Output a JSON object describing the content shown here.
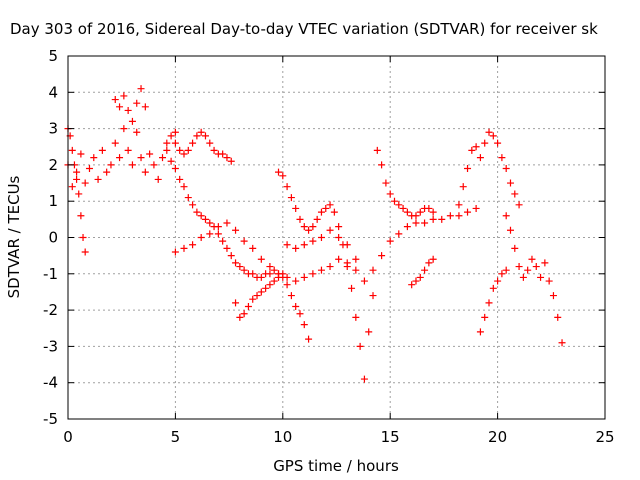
{
  "chart_data": {
    "type": "scatter",
    "title": "Day 303 of 2016, Sidereal Day-to-day VTEC variation (SDTVAR) for receiver sk",
    "xlabel": "GPS time / hours",
    "ylabel": "SDTVAR / TECUs",
    "xlim": [
      0,
      25
    ],
    "ylim": [
      -5,
      5
    ],
    "x_ticks": [
      "0",
      "5",
      "10",
      "15",
      "20",
      "25"
    ],
    "y_ticks": [
      "-5",
      "-4",
      "-3",
      "-2",
      "-1",
      "0",
      "1",
      "2",
      "3",
      "4",
      "5"
    ],
    "grid": true,
    "marker": "+",
    "color": "#ff0000",
    "series": [
      {
        "x": [
          0.0,
          0.2,
          0.4,
          0.6,
          0.8,
          1.0,
          1.2,
          1.4,
          1.6,
          1.8,
          2.0,
          2.2,
          2.4,
          2.6,
          2.8,
          3.0,
          3.2,
          3.4,
          3.6,
          3.8,
          4.0,
          4.2,
          4.4,
          4.6,
          4.8,
          5.0
        ],
        "y": [
          2.0,
          1.4,
          1.8,
          2.3,
          1.5,
          1.9,
          2.2,
          1.6,
          2.4,
          1.8,
          2.0,
          2.6,
          2.2,
          3.0,
          2.4,
          2.0,
          2.9,
          2.2,
          1.8,
          2.3,
          2.0,
          1.6,
          2.2,
          2.6,
          2.8,
          2.9
        ]
      },
      {
        "x": [
          0.0,
          0.1,
          0.2,
          0.3,
          0.4,
          0.5,
          0.6,
          0.7,
          0.8
        ],
        "y": [
          3.0,
          2.8,
          2.4,
          2.0,
          1.6,
          1.2,
          0.6,
          0.0,
          -0.4
        ]
      },
      {
        "x": [
          2.2,
          2.4,
          2.6,
          2.8,
          3.0,
          3.2,
          3.4,
          3.6
        ],
        "y": [
          3.8,
          3.6,
          3.9,
          3.5,
          3.2,
          3.7,
          4.1,
          3.6
        ]
      },
      {
        "x": [
          4.6,
          4.8,
          5.0,
          5.2,
          5.4,
          5.6,
          5.8,
          6.0,
          6.2,
          6.4,
          6.6,
          6.8,
          7.0,
          7.2,
          7.4,
          7.6,
          7.8,
          8.0,
          8.2,
          8.4,
          8.6,
          8.8,
          9.0,
          9.2,
          9.4,
          9.6,
          9.8,
          10.0,
          10.2,
          10.4,
          10.6,
          10.8,
          11.0,
          11.2
        ],
        "y": [
          2.4,
          2.1,
          1.9,
          1.6,
          1.4,
          1.1,
          0.9,
          0.7,
          0.6,
          0.5,
          0.4,
          0.3,
          0.1,
          -0.1,
          -0.3,
          -0.5,
          -0.7,
          -0.8,
          -0.9,
          -1.0,
          -1.0,
          -1.1,
          -1.1,
          -1.0,
          -1.0,
          -0.9,
          -1.0,
          -1.1,
          -1.3,
          -1.6,
          -1.9,
          -2.1,
          -2.4,
          -2.8
        ]
      },
      {
        "x": [
          5.0,
          5.4,
          5.8,
          6.2,
          6.6,
          7.0,
          7.4,
          7.8,
          8.2,
          8.6,
          9.0,
          9.4,
          9.8,
          10.2,
          10.6,
          11.0,
          11.4,
          11.8,
          12.2,
          12.6,
          13.0,
          13.4,
          13.8,
          14.2,
          14.6,
          15.0,
          15.4,
          15.8,
          16.2,
          16.6,
          17.0,
          17.4,
          17.8,
          18.2,
          18.6,
          19.0
        ],
        "y": [
          -0.4,
          -0.3,
          -0.2,
          0.0,
          0.1,
          0.3,
          0.4,
          0.2,
          -0.1,
          -0.3,
          -0.6,
          -0.8,
          -1.0,
          -1.1,
          -1.2,
          -1.1,
          -1.0,
          -0.9,
          -0.8,
          -0.6,
          -0.7,
          -0.9,
          -1.2,
          -0.9,
          -0.5,
          -0.1,
          0.1,
          0.3,
          0.4,
          0.4,
          0.5,
          0.5,
          0.6,
          0.6,
          0.7,
          0.8
        ]
      },
      {
        "x": [
          5.0,
          5.2,
          5.4,
          5.6,
          5.8,
          6.0,
          6.2,
          6.4,
          6.6,
          6.8,
          7.0,
          7.2,
          7.4,
          7.6
        ],
        "y": [
          2.6,
          2.4,
          2.3,
          2.4,
          2.6,
          2.8,
          2.9,
          2.8,
          2.6,
          2.4,
          2.3,
          2.3,
          2.2,
          2.1
        ]
      },
      {
        "x": [
          7.8,
          8.0,
          8.2,
          8.4,
          8.6,
          8.8,
          9.0,
          9.2,
          9.4,
          9.6,
          9.8,
          10.0
        ],
        "y": [
          -1.8,
          -2.2,
          -2.1,
          -1.9,
          -1.7,
          -1.6,
          -1.5,
          -1.4,
          -1.3,
          -1.2,
          -1.1,
          -1.0
        ]
      },
      {
        "x": [
          9.8,
          10.0,
          10.2,
          10.4,
          10.6,
          10.8,
          11.0,
          11.2,
          11.4,
          11.6,
          11.8,
          12.0,
          12.2,
          12.4,
          12.6,
          12.8,
          13.0,
          13.2,
          13.4,
          13.6,
          13.8,
          14.0,
          14.2
        ],
        "y": [
          1.8,
          1.7,
          1.4,
          1.1,
          0.8,
          0.5,
          0.3,
          0.2,
          0.3,
          0.5,
          0.7,
          0.8,
          0.9,
          0.7,
          0.3,
          -0.2,
          -0.8,
          -1.4,
          -2.2,
          -3.0,
          -3.9,
          -2.6,
          -1.6
        ]
      },
      {
        "x": [
          10.2,
          10.6,
          11.0,
          11.4,
          11.8,
          12.2,
          12.6,
          13.0,
          13.4
        ],
        "y": [
          -0.2,
          -0.3,
          -0.2,
          -0.1,
          0.0,
          0.2,
          0.0,
          -0.2,
          -0.6
        ]
      },
      {
        "x": [
          14.4,
          14.6,
          14.8,
          15.0,
          15.2,
          15.4,
          15.6,
          15.8,
          16.0,
          16.2,
          16.4,
          16.6,
          16.8,
          17.0
        ],
        "y": [
          2.4,
          2.0,
          1.5,
          1.2,
          1.0,
          0.9,
          0.8,
          0.7,
          0.6,
          0.6,
          0.7,
          0.8,
          0.8,
          0.7
        ]
      },
      {
        "x": [
          16.0,
          16.2,
          16.4,
          16.6,
          16.8,
          17.0
        ],
        "y": [
          -1.3,
          -1.2,
          -1.1,
          -0.9,
          -0.7,
          -0.6
        ]
      },
      {
        "x": [
          18.2,
          18.4,
          18.6,
          18.8,
          19.0,
          19.2,
          19.4,
          19.6,
          19.8,
          20.0,
          20.2,
          20.4,
          20.6,
          20.8,
          21.0
        ],
        "y": [
          0.9,
          1.4,
          1.9,
          2.4,
          2.5,
          2.2,
          2.6,
          2.9,
          2.8,
          2.6,
          2.2,
          1.9,
          1.5,
          1.2,
          0.9
        ]
      },
      {
        "x": [
          19.2,
          19.4,
          19.6,
          19.8,
          20.0,
          20.2,
          20.4
        ],
        "y": [
          -2.6,
          -2.2,
          -1.8,
          -1.4,
          -1.2,
          -1.0,
          -0.9
        ]
      },
      {
        "x": [
          20.4,
          20.6,
          20.8,
          21.0,
          21.2,
          21.4,
          21.6,
          21.8,
          22.0,
          22.2,
          22.4,
          22.6,
          22.8,
          23.0
        ],
        "y": [
          0.6,
          0.2,
          -0.3,
          -0.8,
          -1.1,
          -0.9,
          -0.6,
          -0.8,
          -1.1,
          -0.7,
          -1.2,
          -1.6,
          -2.2,
          -2.9
        ]
      }
    ]
  }
}
